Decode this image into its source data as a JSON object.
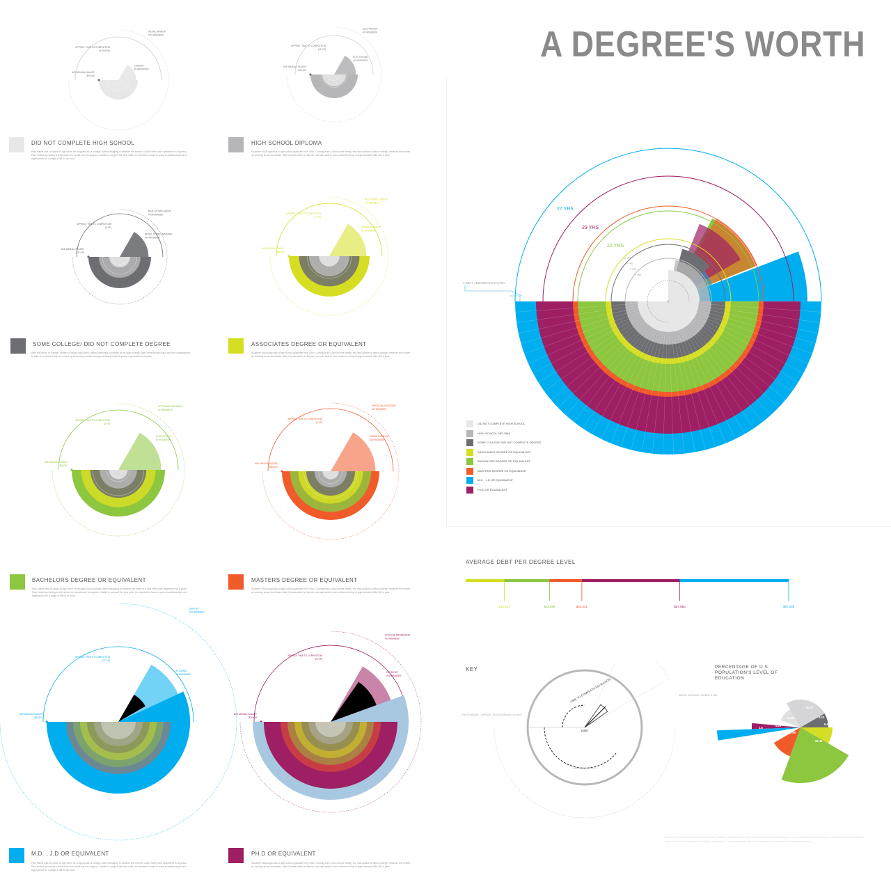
{
  "title": "A DEGREE'S WORTH",
  "colors": {
    "no_hs": "#e7e7e8",
    "hs": "#b6b6b8",
    "some_college": "#6d6e71",
    "associates": "#d6de23",
    "bachelors": "#8dc63f",
    "masters": "#f15a29",
    "md": "#00aeef",
    "phd": "#9e1f63"
  },
  "degrees": [
    {
      "key": "no_hs",
      "label": "DID NOT COMPLETE HIGH SCHOOL",
      "body": "Paul Harris was 16 years of age when he dropped out of college. After managing to weather the times in a Dire Mett room apartment for 8 years, Paul ended up having a child whom he would have to support. Unable to support the new child, he resorted to have to work at additional job at a night janitor for a wage of $8.00 an hour."
    },
    {
      "key": "hs",
      "label": "HIGH SCHOOL DIPLOMA",
      "body": "Suzanne McDougal was a high school graduate from Ohio. Coming from a low income family, she was unable to afford college, however she ended up working as an electrician. After 8 years while on the job, she was able to earn a decent living of approximately $44,400 a year."
    },
    {
      "key": "some_college",
      "label": "SOME COLLEGE/ DID NOT COMPLETE DEGREE",
      "body": "With two years of college, Walter no longer was able to afford attending university at his state college. After several hard days and the unwillingness to take on a student loan he ended up becoming a retail manager at Macy's after 8 years of persistent everyday."
    },
    {
      "key": "associates",
      "label": "ASSOCIATES DEGREE OR EQUIVALENT",
      "body": "Suzanne McDougal was a high school graduate from Ohio. Coming from a low income family, she was unable to afford college, however she ended up working as an electrician. After 8 years while on the job, she was able to earn a decent living of approximately $44,400 a year."
    },
    {
      "key": "bachelors",
      "label": "BACHELORS DEGREE OR EQUIVALENT",
      "body": "Paul Harris was 16 years of age when he dropped out of college. After managing to weather the times in a Dire Mett room apartment for 8 years, Paul ended up having a child whom he would have to support. Unable to support the new child, he resorted to have to work at additional job at a night janitor for a wage of $8.00 an hour."
    },
    {
      "key": "masters",
      "label": "MASTERS DEGREE OR EQUIVALENT",
      "body": "Suzanne McDougal was a high school graduate from Ohio. Coming from a low income family, she was unable to afford college, however she ended up working as an electrician. After 8 years while on the job, she was able to earn a decent living of approximately $44,400 a year."
    },
    {
      "key": "md",
      "label": "M.D. , J.D OR EQUIVALENT",
      "body": "Paul Harris was 16 years of age when he dropped out of college. After managing to weather the times in a Dire Mett room apartment for 8 years, Paul ended up having a child whom he would have to support. Unable to support the new child, he resorted to have to work at additional job at a night janitor for a wage of $8.00 an hour."
    },
    {
      "key": "phd",
      "label": "PH.D OR EQUIVALENT",
      "body": "Suzanne McDougal was a high school graduate from Ohio. Coming from a low income family, she was unable to afford college, however she ended up working as an electrician. After 8 years while on the job, she was able to earn a decent living of approximately $44,400 a year."
    }
  ],
  "small_charts": [
    {
      "salary_label": "AVE ANNUAL SALARY",
      "salary_value": "$20,000",
      "time_label": "APPROX. TIME TO COMPLETION",
      "time_value": "(5 YEARS)",
      "career_label": "CASHIER",
      "career_value": "35 HRS/WEEK",
      "above_label": "RETAIL BANKER",
      "above_value": "5.5 HRS/WEEK"
    },
    {
      "salary_label": "AVE ANNUAL SALARY",
      "salary_value": "$44,400",
      "time_label": "APPROX. TIME TO COMPLETION",
      "time_value": "(12 YR)",
      "career_label": "ELECTRICIAN",
      "career_value": "40 HRS/WEEK",
      "above_label": "ELECTRICIAN",
      "above_value": "40 HRS/WEEK"
    },
    {
      "salary_label": "AVE ANNUAL SALARY",
      "salary_value": "$37,200",
      "time_label": "APPROX. TIME TO COMPLETION",
      "time_value": "(3 YR)",
      "career_label": "RETAIL STORE MANAGER",
      "career_value": "40 HRS/WEEK",
      "above_label": "REAL ESTATE AGENT",
      "above_value": "40 HRS/WEEK"
    },
    {
      "salary_label": "AVE ANNUAL SALARY",
      "salary_value": "$46,800",
      "time_label": "APPROX. TIME TO COMPLETION",
      "time_value": "(2 YR)",
      "career_label": "SOCIAL WORKER",
      "career_value": "40 HRS/WEEK",
      "above_label": "REGISTERED NURSE",
      "above_value": "40 HRS/WEEK"
    },
    {
      "salary_label": "AVE ANNUAL SALARY",
      "salary_value": "$56,000",
      "time_label": "APPROX. TIME TO COMPLETION",
      "time_value": "(4 YR)",
      "career_label": "ACCOUNTANT",
      "career_value": "40 HRS/WEEK",
      "above_label": "SOFTWARE ENGINEER",
      "above_value": "40 HRS/WEEK"
    },
    {
      "salary_label": "AVE ANNUAL SALARY",
      "salary_value": "$65,200",
      "time_label": "APPROX. TIME TO COMPLETION",
      "time_value": "(6 YR)",
      "career_label": "MARKET ANALYST",
      "career_value": "45 HRS/WEEK",
      "above_label": "PHYSICIAN ASSISTANT",
      "above_value": "45 HRS/WEEK"
    },
    {
      "salary_label": "AVE ANNUAL SALARY",
      "salary_value": "$85,470",
      "time_label": "APPROX. TIME TO COMPLETION",
      "time_value": "(27 YR)",
      "career_label": "ATTORNEY",
      "career_value": "45 HRS/WEEK",
      "above_label": "DENTIST",
      "above_value": "60 HRS/WEEK"
    },
    {
      "salary_label": "AVE ANNUAL SALARY",
      "salary_value": "$79,440",
      "time_label": "APPROX. TIME TO COMPLETION",
      "time_value": "(29 YR)",
      "career_label": "PHYSICIST",
      "career_value": "40 HRS/WEEK",
      "above_label": "COLLEGE PROFESSOR",
      "above_value": "40 HRS/WEEK"
    }
  ],
  "main_chart": {
    "years": [
      {
        "label": "27 YRS"
      },
      {
        "label": "29 YRS"
      },
      {
        "label": "22 YRS"
      }
    ],
    "scale_note": "1 INCH = $10,000 AVG SALARY",
    "inner_labels": [
      "12 YRS",
      "9 YRS",
      "2 YRS",
      "4 YRS"
    ]
  },
  "chart_data": [
    {
      "type": "bar",
      "title": "AVERAGE DEBT PER DEGREE LEVEL",
      "categories": [
        "ASSOCIATES DEGREE OR EQUIVALENT",
        "BACHELORS DEGREE OR EQUIVALENT",
        "MASTERS DEGREE OR EQUIVALENT",
        "PH.D OR EQUIVALENT",
        "M.D. , J.D OR EQUIVALENT"
      ],
      "values": [
        10444,
        22656,
        31401,
        57860,
        87308
      ],
      "value_labels": [
        "$10,444",
        "$22,656",
        "$31,401",
        "$57,860",
        "$87,308"
      ]
    },
    {
      "type": "pie",
      "title": "PERCENTAGE OF U.S. POPULATION'S LEVEL OF EDUCATION",
      "categories": [
        "DID NOT COMPLETE HIGH SCHOOL",
        "HIGH SCHOOL DIPLOMA",
        "SOME COLLEGE/ DID NOT COMPLETE DEGREE",
        "ASSOCIATES DEGREE OR EQUIVALENT",
        "BACHELORS DEGREE OR EQUIVALENT",
        "MASTERS DEGREE OR EQUIVALENT",
        "PH.D OR EQUIVALENT",
        "M.D. , J.D OR EQUIVALENT"
      ],
      "values": [
        11.65,
        30.72,
        4.02,
        9.43,
        30.44,
        7.95,
        1.5,
        4.29
      ],
      "value_labels": [
        "11.65",
        "30.72",
        "4.02",
        "9.43",
        "30.44",
        "7.95",
        "1.5",
        "4.29"
      ]
    }
  ],
  "key": {
    "heading": "KEY",
    "time_label": "TIME TO COMPLETE EDUCATION",
    "cost_label": "COST",
    "radius_label": "1 INCH RADIUS – APPROX. $10,000 ANNUAL SALARY",
    "salary_label": "AVE ANNUAL COST",
    "above_label": "ABOVE AVERAGE CAREER & SALARY PER EDUCATION LEVEL"
  },
  "footnote": "Sources: U.S. Census Bureau; Bureau of Labor Statistics; College Board; Project on Student Debt. All salary figures represent median annual earnings for full-time workers. Debt figures represent average cumulative borrowing by degree level. Time to completion figures are approximate and based on traditional enrollment."
}
